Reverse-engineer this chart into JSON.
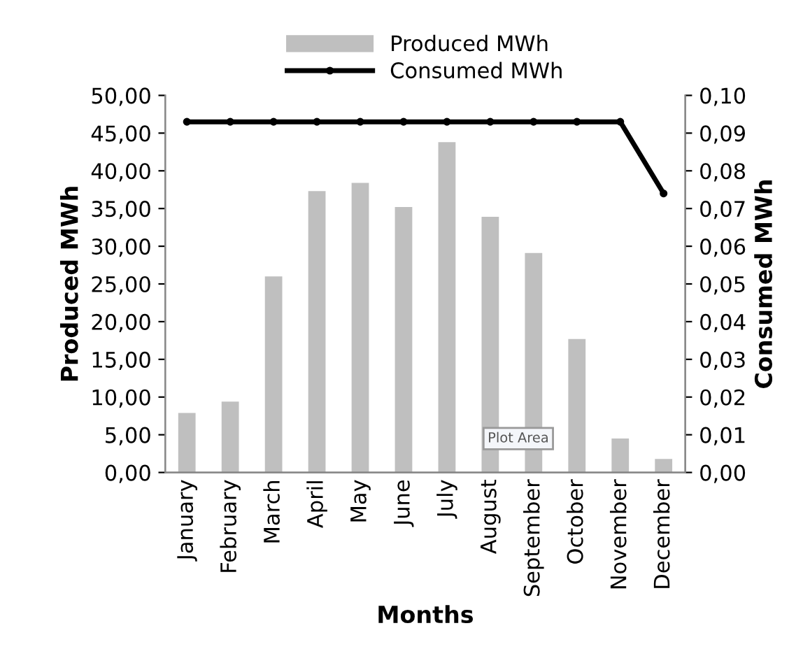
{
  "chart_data": {
    "type": "bar",
    "xlabel": "Months",
    "ylabel": "Produced MWh",
    "y2label": "Consumed MWh",
    "categories": [
      "January",
      "February",
      "March",
      "April",
      "May",
      "June",
      "July",
      "August",
      "September",
      "October",
      "November",
      "December"
    ],
    "series": [
      {
        "name": "Produced MWh",
        "color": "#bfbfbf",
        "values": [
          7.9,
          9.4,
          26.0,
          37.3,
          38.4,
          35.2,
          43.8,
          33.9,
          29.1,
          17.7,
          4.5,
          1.8
        ]
      },
      {
        "name": "Consumed MWh",
        "type": "line",
        "axis": "y2",
        "color": "#000000",
        "marker": "circle",
        "line_style": "solid",
        "values": [
          0.093,
          0.093,
          0.093,
          0.093,
          0.093,
          0.093,
          0.093,
          0.093,
          0.093,
          0.093,
          0.093,
          0.074
        ]
      }
    ],
    "ylim": [
      0,
      50
    ],
    "yticks": [
      {
        "value": 0,
        "label": "0,00"
      },
      {
        "value": 5,
        "label": "5,00"
      },
      {
        "value": 10,
        "label": "10,00"
      },
      {
        "value": 15,
        "label": "15,00"
      },
      {
        "value": 20,
        "label": "20,00"
      },
      {
        "value": 25,
        "label": "25,00"
      },
      {
        "value": 30,
        "label": "30,00"
      },
      {
        "value": 35,
        "label": "35,00"
      },
      {
        "value": 40,
        "label": "40,00"
      },
      {
        "value": 45,
        "label": "45,00"
      },
      {
        "value": 50,
        "label": "50,00"
      }
    ],
    "y2lim": [
      0,
      0.1
    ],
    "y2ticks": [
      {
        "value": 0,
        "label": "0,00"
      },
      {
        "value": 0.01,
        "label": "0,01"
      },
      {
        "value": 0.02,
        "label": "0,02"
      },
      {
        "value": 0.03,
        "label": "0,03"
      },
      {
        "value": 0.04,
        "label": "0,04"
      },
      {
        "value": 0.05,
        "label": "0,05"
      },
      {
        "value": 0.06,
        "label": "0,06"
      },
      {
        "value": 0.07,
        "label": "0,07"
      },
      {
        "value": 0.08,
        "label": "0,08"
      },
      {
        "value": 0.09,
        "label": "0,09"
      },
      {
        "value": 0.1,
        "label": "0,10"
      }
    ],
    "grid": false,
    "legend": "top",
    "annotations": [
      "Plot Area"
    ]
  }
}
